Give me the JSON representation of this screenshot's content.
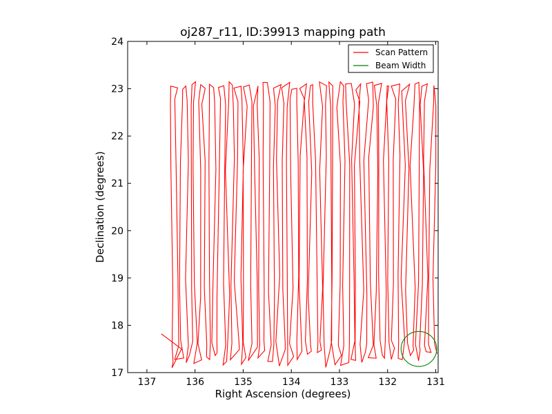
{
  "chart_data": {
    "type": "line",
    "title": "oj287_r11, ID:39913 mapping path",
    "xlabel": "Right Ascension (degrees)",
    "ylabel": "Declination (degrees)",
    "xlim": [
      137.4,
      130.95
    ],
    "ylim": [
      17,
      24
    ],
    "x_inverted": true,
    "xticks": [
      137,
      136,
      135,
      134,
      133,
      132,
      131
    ],
    "yticks": [
      17,
      18,
      19,
      20,
      21,
      22,
      23,
      24
    ],
    "xtick_labels": [
      "137",
      "136",
      "135",
      "134",
      "133",
      "132",
      "131"
    ],
    "ytick_labels": [
      "17",
      "18",
      "19",
      "20",
      "21",
      "22",
      "23",
      "24"
    ],
    "legend_position": "top-right",
    "grid": false,
    "colors": {
      "scan": "#ff0000",
      "beam": "#008000"
    },
    "legend": [
      {
        "label": "Scan Pattern",
        "color": "#ff0000"
      },
      {
        "label": "Beam Width",
        "color": "#008000"
      }
    ],
    "series": [
      {
        "name": "Scan Pattern",
        "color": "#ff0000",
        "scan": {
          "ra_start": 136.48,
          "ra_end": 131.0,
          "leg_count": 58,
          "dec_bottom": 17.1,
          "dec_top": 23.15,
          "lead_in": [
            [
              136.7,
              17.82
            ],
            [
              136.28,
              17.5
            ],
            [
              136.48,
              17.1
            ]
          ]
        }
      },
      {
        "name": "Beam Width",
        "color": "#008000",
        "circle": {
          "center_ra": 131.35,
          "center_dec": 17.5,
          "radius_deg": 0.37
        }
      }
    ]
  }
}
